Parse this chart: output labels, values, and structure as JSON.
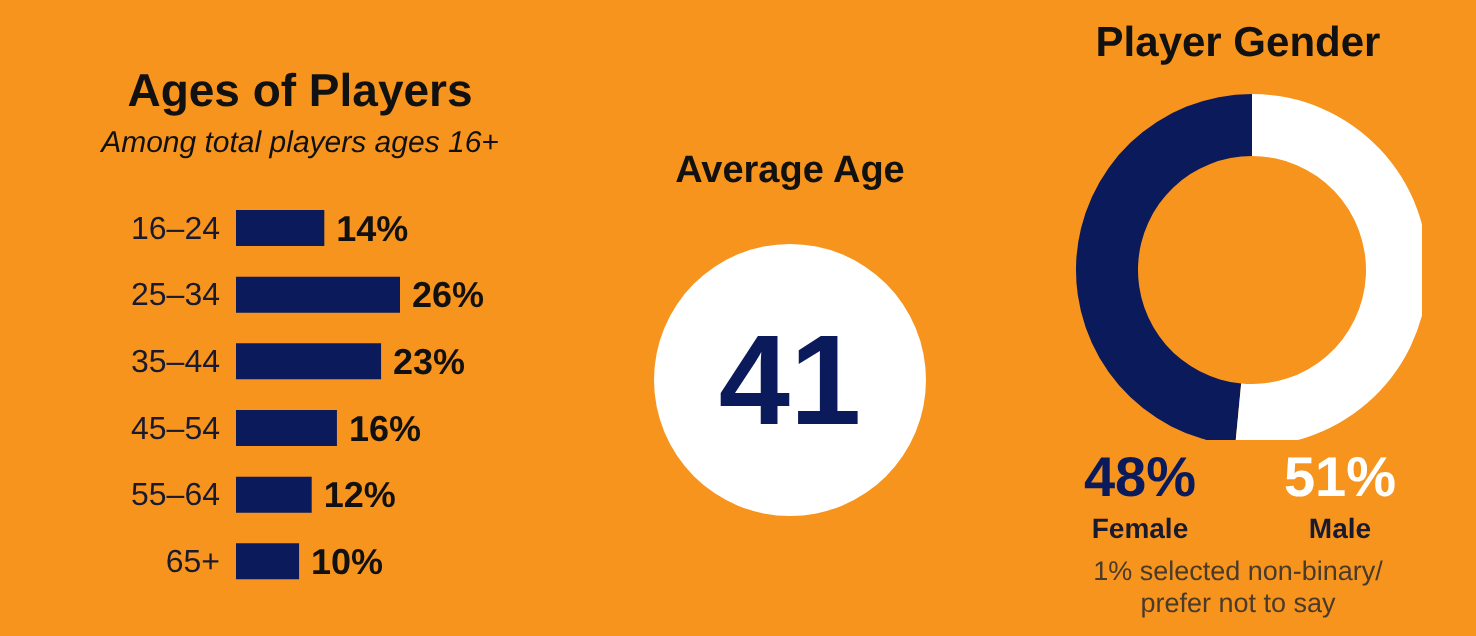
{
  "chart_data": [
    {
      "type": "bar",
      "orientation": "horizontal",
      "title": "Ages of Players",
      "subtitle": "Among total players ages 16+",
      "categories": [
        "16–24",
        "25–34",
        "35–44",
        "45–54",
        "55–64",
        "65+"
      ],
      "values": [
        14,
        26,
        23,
        16,
        12,
        10
      ],
      "value_labels": [
        "14%",
        "26%",
        "23%",
        "16%",
        "12%",
        "10%"
      ],
      "color": "#0b1a5b",
      "tick_labels": "y"
    },
    {
      "type": "other",
      "title": "Average Age",
      "annotations": [
        "41"
      ]
    },
    {
      "type": "donut",
      "title": "Player Gender",
      "categories": [
        "Female",
        "Male"
      ],
      "values": [
        48,
        51
      ],
      "colors": [
        "#0b1a5b",
        "#ffffff"
      ],
      "value_labels": [
        "48%",
        "51%"
      ],
      "annotations": [
        "1% selected non-binary/ prefer not to say"
      ]
    }
  ]
}
